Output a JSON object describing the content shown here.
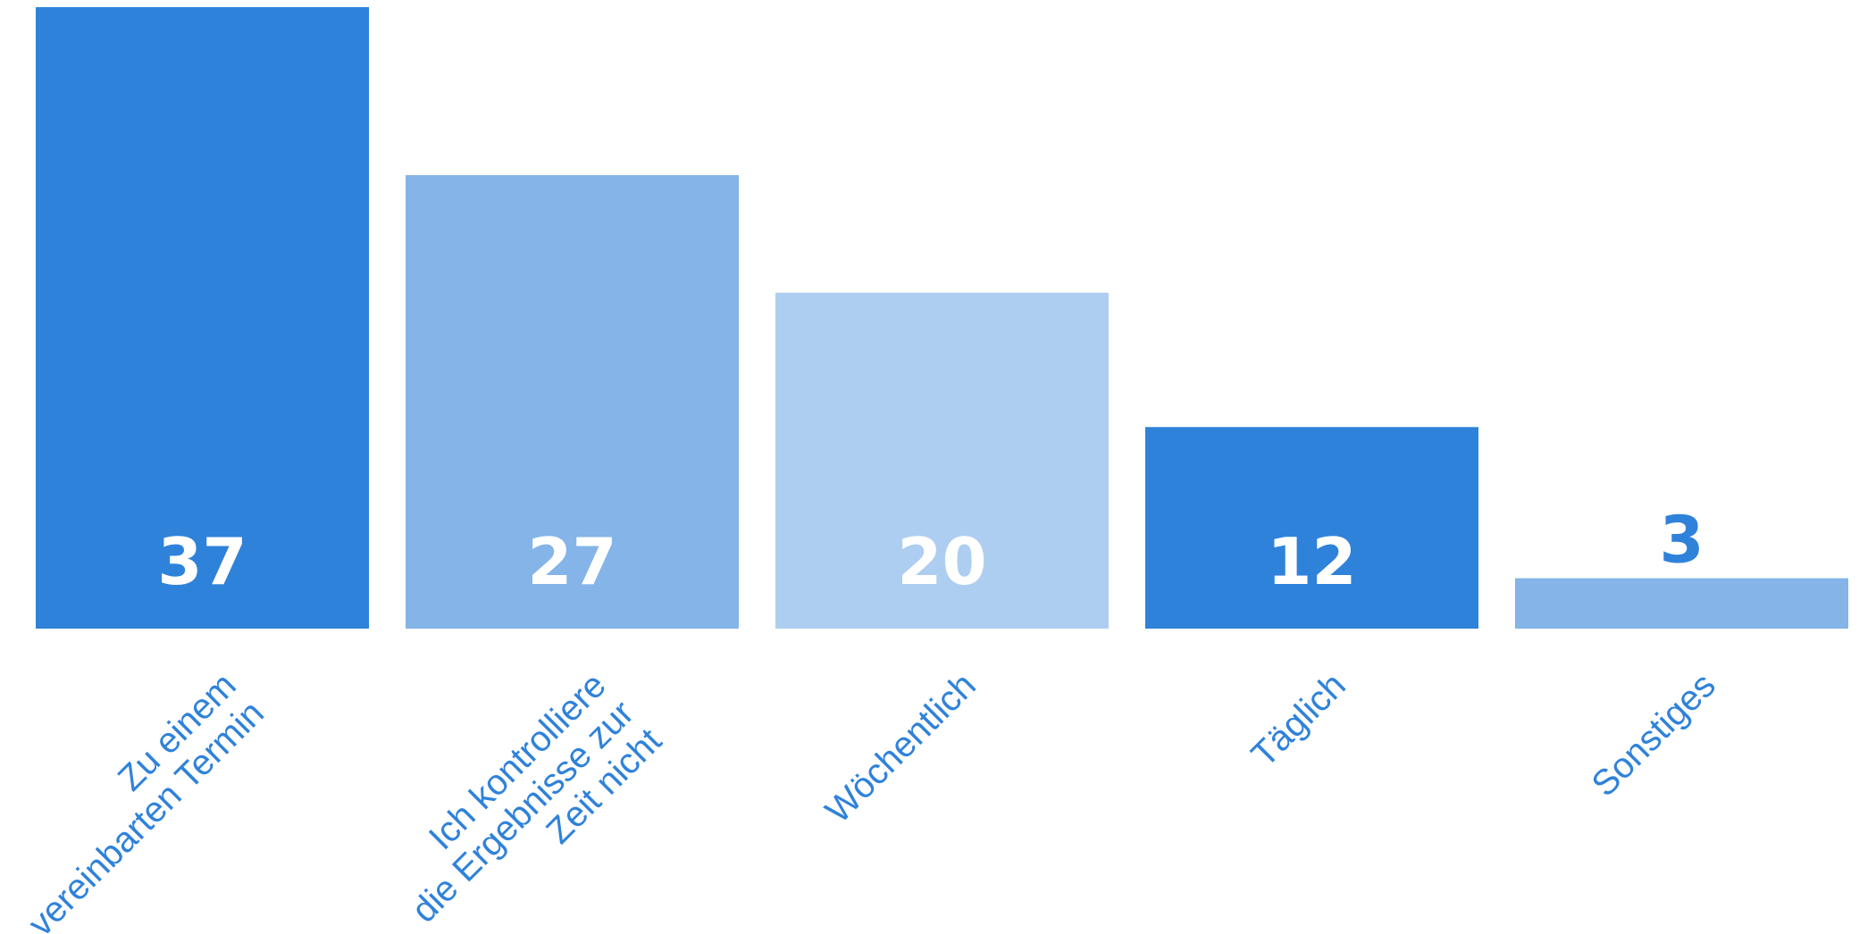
{
  "chart_data": {
    "type": "bar",
    "title": "",
    "xlabel": "",
    "ylabel": "",
    "ylim": [
      0,
      37
    ],
    "grid": false,
    "categories": [
      [
        "Zu einem",
        "vereinbarten Termin"
      ],
      [
        "Ich kontrolliere",
        "die Ergebnisse zur",
        "Zeit nicht"
      ],
      [
        "Wöchentlich"
      ],
      [
        "Täglich"
      ],
      [
        "Sonstiges"
      ]
    ],
    "values": [
      37,
      27,
      20,
      12,
      3
    ],
    "value_labels": [
      "37",
      "27",
      "20",
      "12",
      "3"
    ],
    "bar_colors": [
      "#2F82DA",
      "#84B4E8",
      "#ADCEF0",
      "#2F82DA",
      "#84B4E8"
    ],
    "value_label_color_inside": "#FFFFFF",
    "value_label_color_outside": "#2F82DA",
    "category_label_color": "#2F82DA"
  }
}
